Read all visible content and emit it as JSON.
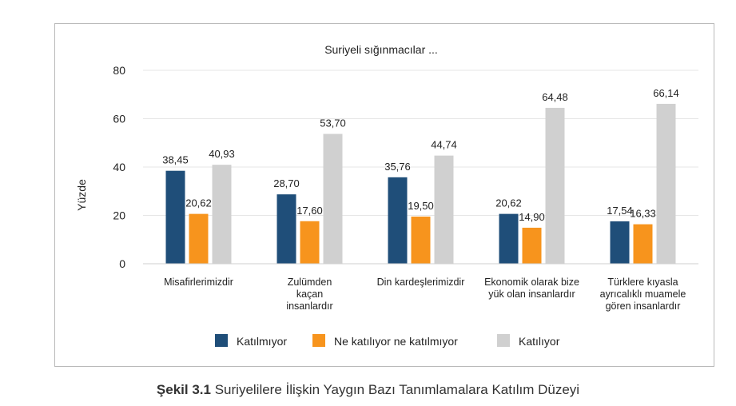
{
  "chart_data": {
    "type": "bar",
    "title": "Suriyeli sığınmacılar ...",
    "ylabel": "Yüzde",
    "xlabel": "",
    "ylim": [
      0,
      80
    ],
    "yticks": [
      0,
      20,
      40,
      60,
      80
    ],
    "categories": [
      [
        "Misafirlerimizdir"
      ],
      [
        "Zulümden",
        "kaçan",
        "insanlardır"
      ],
      [
        "Din kardeşlerimizdir"
      ],
      [
        "Ekonomik olarak bize",
        "yük olan insanlardır"
      ],
      [
        "Türklere kıyasla",
        "ayrıcalıklı muamele",
        "gören insanlardır"
      ]
    ],
    "series": [
      {
        "name": "Katılmıyor",
        "color": "#1f4e79",
        "values": [
          38.45,
          28.7,
          35.76,
          20.62,
          17.54
        ],
        "labels": [
          "38,45",
          "28,70",
          "35,76",
          "20,62",
          "17,54"
        ]
      },
      {
        "name": "Ne katılıyor ne katılmıyor",
        "color": "#f7941d",
        "values": [
          20.62,
          17.6,
          19.5,
          14.9,
          16.33
        ],
        "labels": [
          "20,62",
          "17,60",
          "19,50",
          "14,90",
          "16,33"
        ]
      },
      {
        "name": "Katılıyor",
        "color": "#d0d0d0",
        "values": [
          40.93,
          53.7,
          44.74,
          64.48,
          66.14
        ],
        "labels": [
          "40,93",
          "53,70",
          "44,74",
          "64,48",
          "66,14"
        ]
      }
    ],
    "grid": true,
    "legend_position": "bottom"
  },
  "caption": {
    "label": "Şekil 3.1",
    "text": " Suriyelilere İlişkin Yaygın Bazı Tanımlamalara Katılım Düzeyi"
  }
}
